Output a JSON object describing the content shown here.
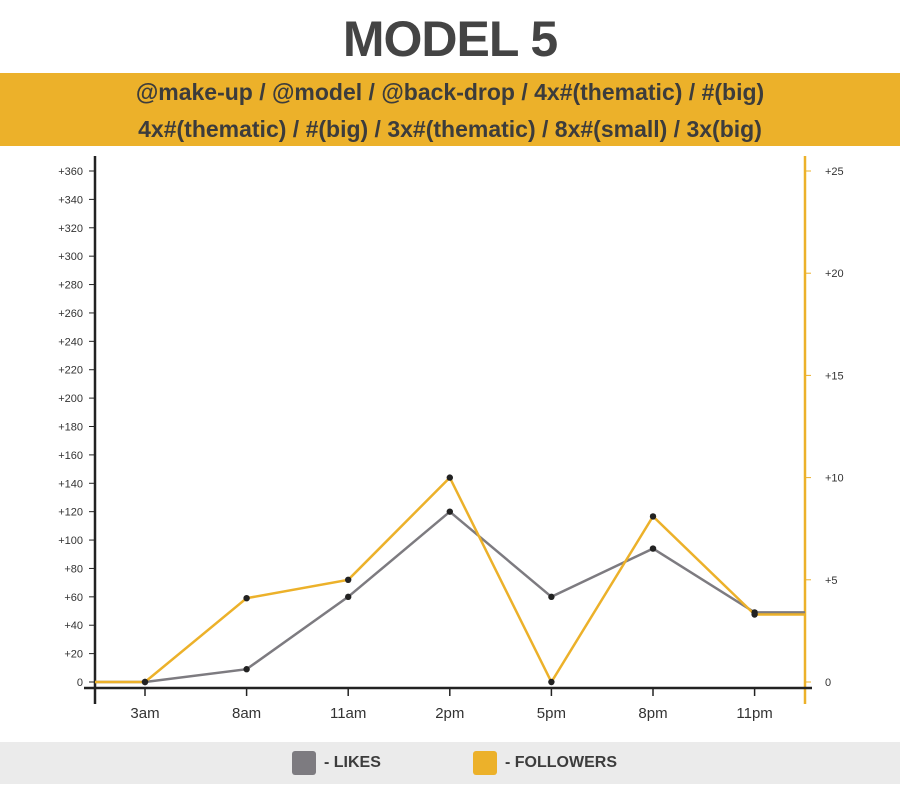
{
  "title": "MODEL 5",
  "banner": {
    "line1": "@make-up / @model / @back-drop / 4x#(thematic) / #(big)",
    "line2": "4x#(thematic) / #(big) / 3x#(thematic) / 8x#(small) / 3x(big)"
  },
  "colors": {
    "likes": "#7d7b80",
    "followers": "#ecb12a",
    "axis": "#222222",
    "banner": "#ecb12a",
    "legend_bg": "#ebebeb"
  },
  "legend": {
    "likes_label": "- LIKES",
    "followers_label": "- FOLLOWERS"
  },
  "chart_data": {
    "type": "line",
    "categories": [
      "3am",
      "8am",
      "11am",
      "2pm",
      "5pm",
      "8pm",
      "11pm"
    ],
    "y_left": {
      "ylim": [
        0,
        360
      ],
      "ticks": [
        0,
        20,
        40,
        60,
        80,
        100,
        120,
        140,
        160,
        180,
        200,
        220,
        240,
        260,
        280,
        300,
        320,
        340,
        360
      ],
      "tick_labels": [
        "0",
        "+20",
        "+40",
        "+60",
        "+80",
        "+100",
        "+120",
        "+140",
        "+160",
        "+180",
        "+200",
        "+220",
        "+240",
        "+260",
        "+280",
        "+300",
        "+320",
        "+340",
        "+360"
      ]
    },
    "y_right": {
      "ylim": [
        0,
        25
      ],
      "ticks": [
        0,
        5,
        10,
        15,
        20,
        25
      ],
      "tick_labels": [
        "0",
        "+5",
        "+10",
        "+15",
        "+20",
        "+25"
      ]
    },
    "series": [
      {
        "name": "LIKES",
        "axis": "left",
        "values": [
          0,
          9,
          60,
          120,
          60,
          94,
          49
        ]
      },
      {
        "name": "FOLLOWERS",
        "axis": "right",
        "values": [
          0,
          4.1,
          5.0,
          10.0,
          0,
          8.1,
          3.3
        ]
      }
    ],
    "grid": false,
    "legend_position": "bottom"
  }
}
